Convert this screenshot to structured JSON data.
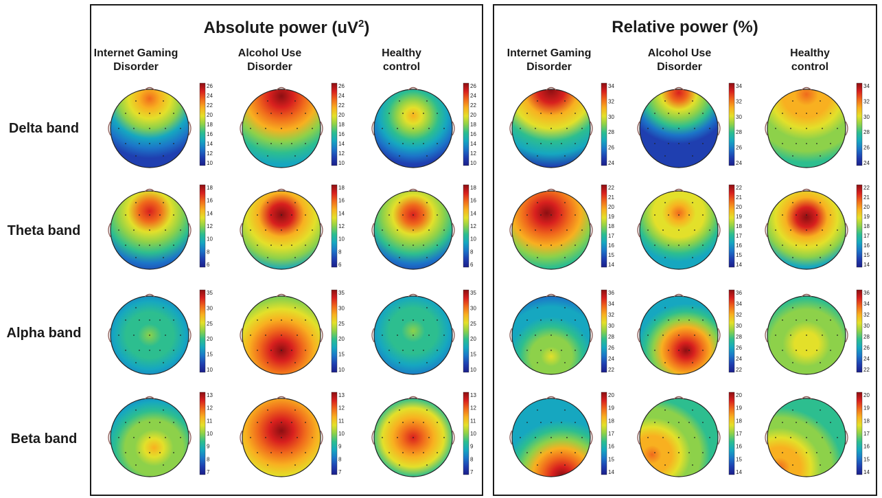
{
  "panels": [
    {
      "title": "Absolute power (uV²)",
      "columns": [
        "Internet Gaming\nDisorder",
        "Alcohol Use\nDisorder",
        "Healthy\ncontrol"
      ],
      "colorbars": [
        [
          26,
          24,
          22,
          20,
          18,
          16,
          14,
          12,
          10
        ],
        [
          18,
          16,
          14,
          12,
          10,
          8,
          6
        ],
        [
          35,
          30,
          25,
          20,
          15,
          10
        ],
        [
          13,
          12,
          11,
          10,
          9,
          8,
          7
        ]
      ],
      "maps": [
        [
          {
            "hot": [
              0.5,
              0.15
            ],
            "spread": 0.35,
            "level": 0.8,
            "base": 0.1
          },
          {
            "hot": [
              0.5,
              0.12
            ],
            "spread": 0.45,
            "level": 0.95,
            "base": 0.25
          },
          {
            "hot": [
              0.5,
              0.35
            ],
            "spread": 0.22,
            "level": 0.7,
            "base": 0.12
          }
        ],
        [
          {
            "hot": [
              0.5,
              0.28
            ],
            "spread": 0.38,
            "level": 0.88,
            "base": 0.1
          },
          {
            "hot": [
              0.5,
              0.32
            ],
            "spread": 0.42,
            "level": 1.0,
            "base": 0.15
          },
          {
            "hot": [
              0.5,
              0.32
            ],
            "spread": 0.34,
            "level": 0.9,
            "base": 0.08
          }
        ],
        [
          {
            "hot": [
              0.5,
              0.5
            ],
            "spread": 0.45,
            "level": 0.45,
            "base": 0.1
          },
          {
            "hot": [
              0.5,
              0.68
            ],
            "spread": 0.38,
            "level": 1.0,
            "base": 0.35
          },
          {
            "hot": [
              0.5,
              0.45
            ],
            "spread": 0.45,
            "level": 0.5,
            "base": 0.1
          }
        ],
        [
          {
            "hot": [
              0.55,
              0.62
            ],
            "spread": 0.3,
            "level": 0.7,
            "base": 0.2
          },
          {
            "hot": [
              0.5,
              0.42
            ],
            "spread": 0.45,
            "level": 1.0,
            "base": 0.4
          },
          {
            "hot": [
              0.5,
              0.5
            ],
            "spread": 0.34,
            "level": 0.92,
            "base": 0.18
          }
        ]
      ]
    },
    {
      "title": "Relative power (%)",
      "columns": [
        "Internet Gaming\nDisorder",
        "Alcohol Use\nDisorder",
        "Healthy\ncontrol"
      ],
      "colorbars": [
        [
          34,
          32,
          30,
          28,
          26,
          24
        ],
        [
          22,
          21,
          20,
          19,
          18,
          17,
          16,
          15,
          14
        ],
        [
          36,
          34,
          32,
          30,
          28,
          26,
          24,
          22
        ],
        [
          20,
          19,
          18,
          17,
          16,
          15,
          14
        ]
      ],
      "maps": [
        [
          {
            "hot": [
              0.5,
              0.05
            ],
            "spread": 0.55,
            "level": 1.0,
            "base": 0.1
          },
          {
            "hot": [
              0.5,
              0.08
            ],
            "spread": 0.25,
            "level": 0.85,
            "base": 0.1
          },
          {
            "hot": [
              0.5,
              0.1
            ],
            "spread": 0.45,
            "level": 0.8,
            "base": 0.35
          }
        ],
        [
          {
            "hot": [
              0.45,
              0.3
            ],
            "spread": 0.42,
            "level": 1.0,
            "base": 0.25
          },
          {
            "hot": [
              0.5,
              0.3
            ],
            "spread": 0.22,
            "level": 0.75,
            "base": 0.25
          },
          {
            "hot": [
              0.5,
              0.35
            ],
            "spread": 0.35,
            "level": 0.95,
            "base": 0.2
          }
        ],
        [
          {
            "hot": [
              0.5,
              0.75
            ],
            "spread": 0.35,
            "level": 0.55,
            "base": 0.15
          },
          {
            "hot": [
              0.58,
              0.68
            ],
            "spread": 0.2,
            "level": 1.0,
            "base": 0.3
          },
          {
            "hot": [
              0.5,
              0.6
            ],
            "spread": 0.45,
            "level": 0.55,
            "base": 0.3
          }
        ],
        [
          {
            "hot": [
              0.62,
              0.95
            ],
            "spread": 0.3,
            "level": 1.0,
            "base": 0.3
          },
          {
            "hot": [
              0.2,
              0.7
            ],
            "spread": 0.3,
            "level": 0.75,
            "base": 0.35
          },
          {
            "hot": [
              0.2,
              0.85
            ],
            "spread": 0.35,
            "level": 0.8,
            "base": 0.35
          }
        ]
      ]
    }
  ],
  "rows": [
    "Delta band",
    "Theta band",
    "Alpha band",
    "Beta band"
  ]
}
